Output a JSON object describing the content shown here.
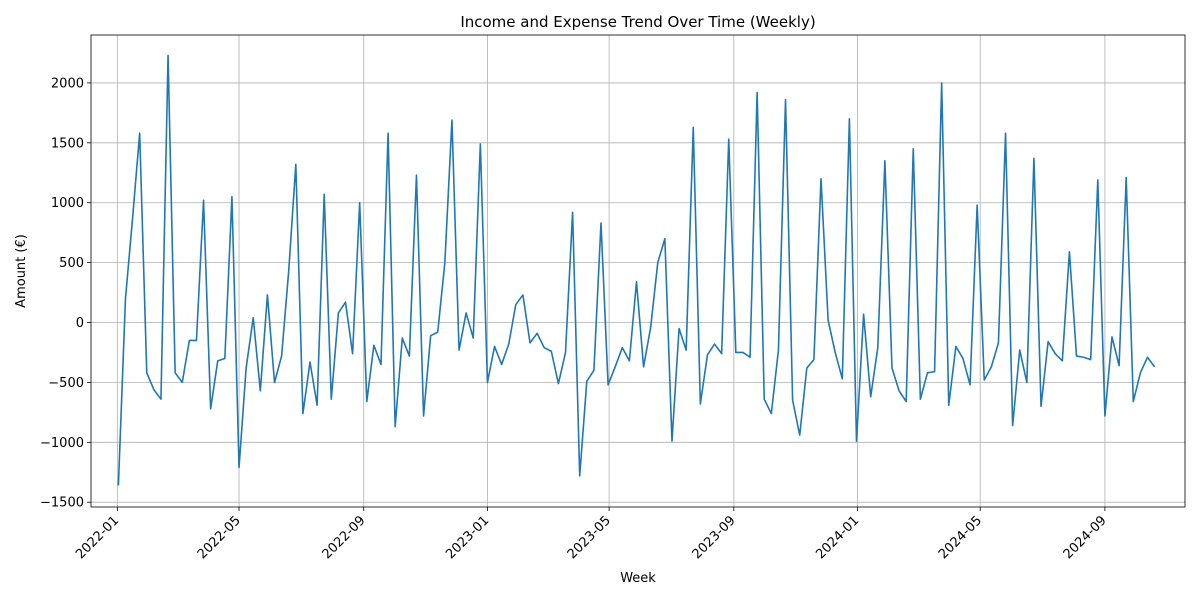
{
  "chart_data": {
    "type": "line",
    "title": "Income and Expense Trend Over Time (Weekly)",
    "xlabel": "Week",
    "ylabel": "Amount (€)",
    "ylim": [
      -1540,
      2400
    ],
    "xlim": [
      "2021-12-06",
      "2024-11-19"
    ],
    "grid": true,
    "legend": "none",
    "line_color": "#1f77b4",
    "x_ticks": [
      "2022-01",
      "2022-05",
      "2022-09",
      "2023-01",
      "2023-05",
      "2023-09",
      "2024-01",
      "2024-05",
      "2024-09"
    ],
    "y_ticks": [
      -1500,
      -1000,
      -500,
      0,
      500,
      1000,
      1500,
      2000
    ],
    "series": [
      {
        "x": [
          "2022-01-02",
          "2022-01-09",
          "2022-01-16",
          "2022-01-23",
          "2022-01-30",
          "2022-02-06",
          "2022-02-13",
          "2022-02-20",
          "2022-02-27",
          "2022-03-06",
          "2022-03-13",
          "2022-03-20",
          "2022-03-27",
          "2022-04-03",
          "2022-04-10",
          "2022-04-17",
          "2022-04-24",
          "2022-05-01",
          "2022-05-08",
          "2022-05-15",
          "2022-05-22",
          "2022-05-29",
          "2022-06-05",
          "2022-06-12",
          "2022-06-19",
          "2022-06-26",
          "2022-07-03",
          "2022-07-10",
          "2022-07-17",
          "2022-07-24",
          "2022-07-31",
          "2022-08-07",
          "2022-08-14",
          "2022-08-21",
          "2022-08-28",
          "2022-09-04",
          "2022-09-11",
          "2022-09-18",
          "2022-09-25",
          "2022-10-02",
          "2022-10-09",
          "2022-10-16",
          "2022-10-23",
          "2022-10-30",
          "2022-11-06",
          "2022-11-13",
          "2022-11-20",
          "2022-11-27",
          "2022-12-04",
          "2022-12-11",
          "2022-12-18",
          "2022-12-25",
          "2023-01-01",
          "2023-01-08",
          "2023-01-15",
          "2023-01-22",
          "2023-01-29",
          "2023-02-05",
          "2023-02-12",
          "2023-02-19",
          "2023-02-26",
          "2023-03-05",
          "2023-03-12",
          "2023-03-19",
          "2023-03-26",
          "2023-04-02",
          "2023-04-09",
          "2023-04-16",
          "2023-04-23",
          "2023-04-30",
          "2023-05-07",
          "2023-05-14",
          "2023-05-21",
          "2023-05-28",
          "2023-06-04",
          "2023-06-11",
          "2023-06-18",
          "2023-06-25",
          "2023-07-02",
          "2023-07-09",
          "2023-07-16",
          "2023-07-23",
          "2023-07-30",
          "2023-08-06",
          "2023-08-13",
          "2023-08-20",
          "2023-08-27",
          "2023-09-03",
          "2023-09-10",
          "2023-09-17",
          "2023-09-24",
          "2023-10-01",
          "2023-10-08",
          "2023-10-15",
          "2023-10-22",
          "2023-10-29",
          "2023-11-05",
          "2023-11-12",
          "2023-11-19",
          "2023-11-26",
          "2023-12-03",
          "2023-12-10",
          "2023-12-17",
          "2023-12-24",
          "2023-12-31",
          "2024-01-07",
          "2024-01-14",
          "2024-01-21",
          "2024-01-28",
          "2024-02-04",
          "2024-02-11",
          "2024-02-18",
          "2024-02-25",
          "2024-03-03",
          "2024-03-10",
          "2024-03-17",
          "2024-03-24",
          "2024-03-31",
          "2024-04-07",
          "2024-04-14",
          "2024-04-21",
          "2024-04-28",
          "2024-05-05",
          "2024-05-12",
          "2024-05-19",
          "2024-05-26",
          "2024-06-02",
          "2024-06-09",
          "2024-06-16",
          "2024-06-23",
          "2024-06-30",
          "2024-07-07",
          "2024-07-14",
          "2024-07-21",
          "2024-07-28",
          "2024-08-04",
          "2024-08-11",
          "2024-08-18",
          "2024-08-25",
          "2024-09-01",
          "2024-09-08",
          "2024-09-15",
          "2024-09-22",
          "2024-09-29",
          "2024-10-06",
          "2024-10-13",
          "2024-10-20"
        ],
        "values": [
          -1360,
          200,
          870,
          1580,
          -420,
          -560,
          -640,
          2230,
          -420,
          -500,
          -150,
          -150,
          1020,
          -720,
          -320,
          -300,
          1050,
          -1210,
          -380,
          40,
          -570,
          230,
          -500,
          -280,
          430,
          1320,
          -760,
          -330,
          -690,
          1070,
          -640,
          80,
          170,
          -260,
          1000,
          -660,
          -190,
          -350,
          1580,
          -870,
          -130,
          -280,
          1230,
          -780,
          -110,
          -80,
          500,
          1690,
          -230,
          80,
          -130,
          1490,
          -500,
          -200,
          -350,
          -180,
          150,
          230,
          -170,
          -90,
          -210,
          -240,
          -510,
          -250,
          920,
          -1280,
          -490,
          -400,
          830,
          -520,
          -370,
          -210,
          -320,
          340,
          -370,
          -40,
          500,
          700,
          -990,
          -50,
          -230,
          1630,
          -680,
          -270,
          -180,
          -260,
          1530,
          -250,
          -250,
          -290,
          1920,
          -640,
          -760,
          -230,
          1860,
          -650,
          -940,
          -380,
          -310,
          1200,
          20,
          -250,
          -470,
          1700,
          -990,
          70,
          -620,
          -210,
          1350,
          -380,
          -570,
          -660,
          1450,
          -640,
          -420,
          -410,
          2000,
          -690,
          -200,
          -300,
          -520,
          980,
          -480,
          -370,
          -170,
          1580,
          -860,
          -230,
          -500,
          1370,
          -700,
          -160,
          -260,
          -320,
          590,
          -280,
          -290,
          -310,
          1190,
          -780,
          -120,
          -360,
          1210,
          -660,
          -420,
          -290,
          -370
        ]
      }
    ]
  }
}
